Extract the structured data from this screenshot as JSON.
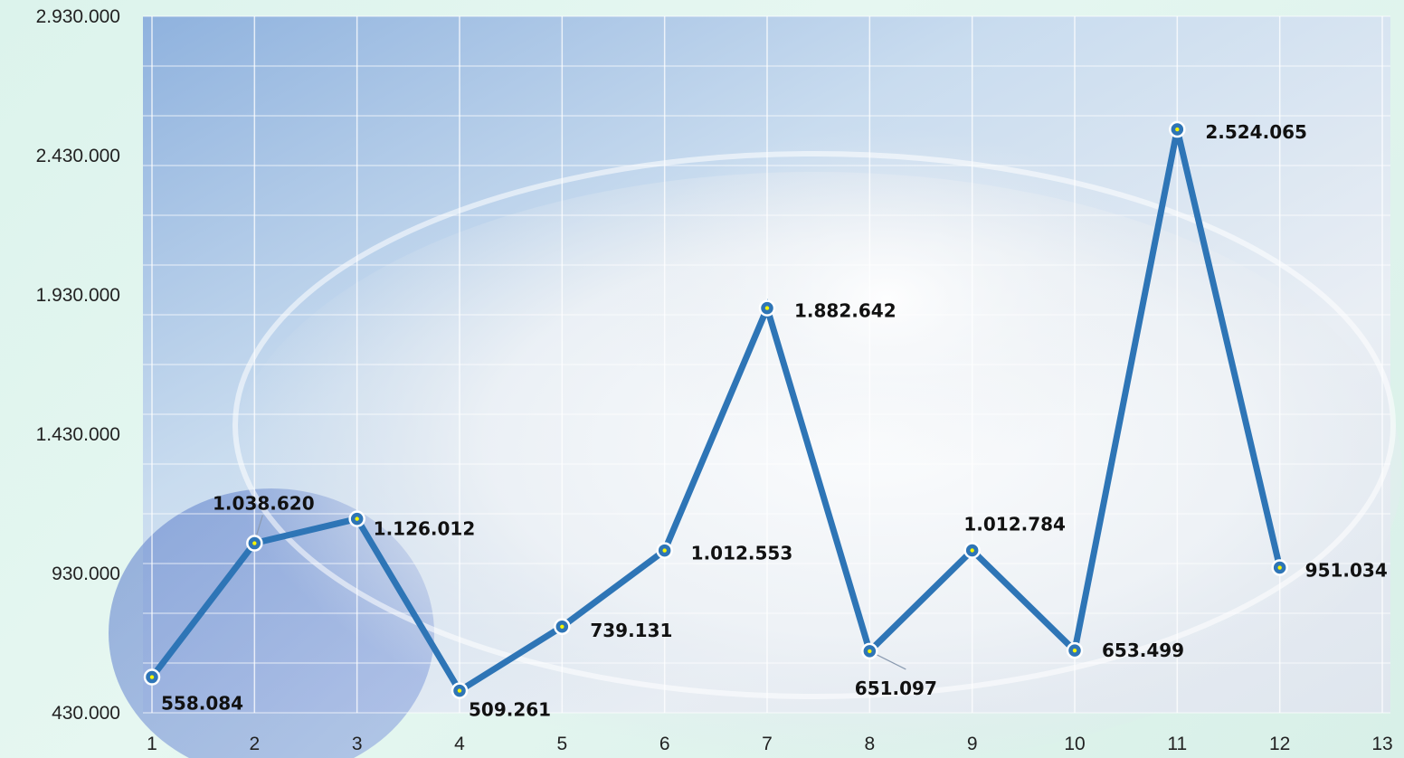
{
  "chart_data": {
    "type": "line",
    "title": "",
    "xlabel": "",
    "ylabel": "",
    "x": [
      1,
      2,
      3,
      4,
      5,
      6,
      7,
      8,
      9,
      10,
      11,
      12
    ],
    "series": [
      {
        "values": [
          558084,
          1038620,
          1126012,
          509261,
          739131,
          1012553,
          1882642,
          651097,
          1012784,
          653499,
          2524065,
          951034
        ],
        "labels": [
          "558.084",
          "1.038.620",
          "1.126.012",
          "509.261",
          "739.131",
          "1.012.553",
          "1.882.642",
          "651.097",
          "1.012.784",
          "653.499",
          "2.524.065",
          "951.034"
        ],
        "color": "#2e75b6"
      }
    ],
    "xlim": [
      1,
      13
    ],
    "ylim": [
      430000,
      2930000
    ],
    "x_ticks": [
      "1",
      "2",
      "3",
      "4",
      "5",
      "6",
      "7",
      "8",
      "9",
      "10",
      "11",
      "12",
      "13"
    ],
    "y_ticks": [
      430000,
      930000,
      1430000,
      1930000,
      2430000,
      2930000
    ],
    "y_tick_labels": [
      "430.000",
      "930.000",
      "1.430.000",
      "1.930.000",
      "2.430.000",
      "2.930.000"
    ],
    "grid": true,
    "background": "photo-of-yogurt-bowl",
    "marker_color": "#f5f500"
  }
}
